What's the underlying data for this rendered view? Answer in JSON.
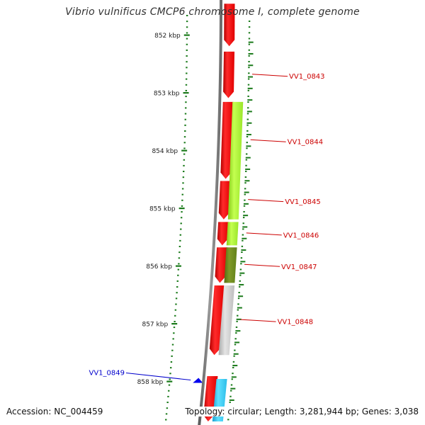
{
  "title": "Vibrio vulnificus CMCP6 chromosome I, complete genome",
  "accession": "Accession: NC_004459",
  "topology": "Topology: circular; Length: 3,281,944 bp; Genes: 3,038",
  "colors": {
    "backbone": "#7a7a7a",
    "tick": "#1a7a1a",
    "forward_gene": "#ff1010",
    "reverse_gene_light": "#a8f030",
    "reverse_gene_dark": "#6e8a1e",
    "reverse_gene_grey": "#c8c8c8",
    "reverse_gene_cyan": "#30c8f0",
    "label_forward_gene": "#cc0000",
    "label_reverse_gene": "#0000cc",
    "axis_text": "#222222"
  },
  "scale": {
    "unit": "kbp",
    "major_ticks": [
      {
        "kbp": 852,
        "label": "852 kbp"
      },
      {
        "kbp": 853,
        "label": "853 kbp"
      },
      {
        "kbp": 854,
        "label": "854 kbp"
      },
      {
        "kbp": 855,
        "label": "855 kbp"
      },
      {
        "kbp": 856,
        "label": "856 kbp"
      },
      {
        "kbp": 857,
        "label": "857 kbp"
      },
      {
        "kbp": 858,
        "label": "858 kbp"
      }
    ]
  },
  "genes": [
    {
      "strand": "forward",
      "color": "red",
      "start_kbp": 851.45,
      "end_kbp": 852.2,
      "label": ""
    },
    {
      "strand": "forward",
      "color": "red",
      "start_kbp": 852.28,
      "end_kbp": 853.1,
      "label": "VV1_0843"
    },
    {
      "strand": "forward",
      "color": "red",
      "start_kbp": 853.15,
      "end_kbp": 854.5,
      "label": "VV1_0844"
    },
    {
      "strand": "forward",
      "color": "red",
      "start_kbp": 854.52,
      "end_kbp": 855.2,
      "label": "VV1_0845"
    },
    {
      "strand": "forward",
      "color": "red",
      "start_kbp": 855.23,
      "end_kbp": 855.65,
      "label": "VV1_0846"
    },
    {
      "strand": "forward",
      "color": "red",
      "start_kbp": 855.67,
      "end_kbp": 856.3,
      "label": "VV1_0847"
    },
    {
      "strand": "forward",
      "color": "red",
      "start_kbp": 856.33,
      "end_kbp": 857.55,
      "label": "VV1_0848"
    },
    {
      "strand": "forward",
      "color": "red",
      "start_kbp": 857.9,
      "end_kbp": 858.7,
      "label": ""
    },
    {
      "strand": "reverse",
      "color": "light_green",
      "start_kbp": 853.15,
      "end_kbp": 855.2,
      "label": ""
    },
    {
      "strand": "reverse",
      "color": "light_green",
      "start_kbp": 855.23,
      "end_kbp": 855.65,
      "label": ""
    },
    {
      "strand": "reverse",
      "color": "dark_green",
      "start_kbp": 855.67,
      "end_kbp": 856.3,
      "label": ""
    },
    {
      "strand": "reverse",
      "color": "grey",
      "start_kbp": 856.33,
      "end_kbp": 857.55,
      "label": ""
    },
    {
      "strand": "reverse",
      "color": "cyan",
      "start_kbp": 857.95,
      "end_kbp": 858.7,
      "label": ""
    },
    {
      "strand": "marker",
      "color": "blue",
      "start_kbp": 857.98,
      "end_kbp": 858.0,
      "label": "VV1_0849"
    }
  ]
}
